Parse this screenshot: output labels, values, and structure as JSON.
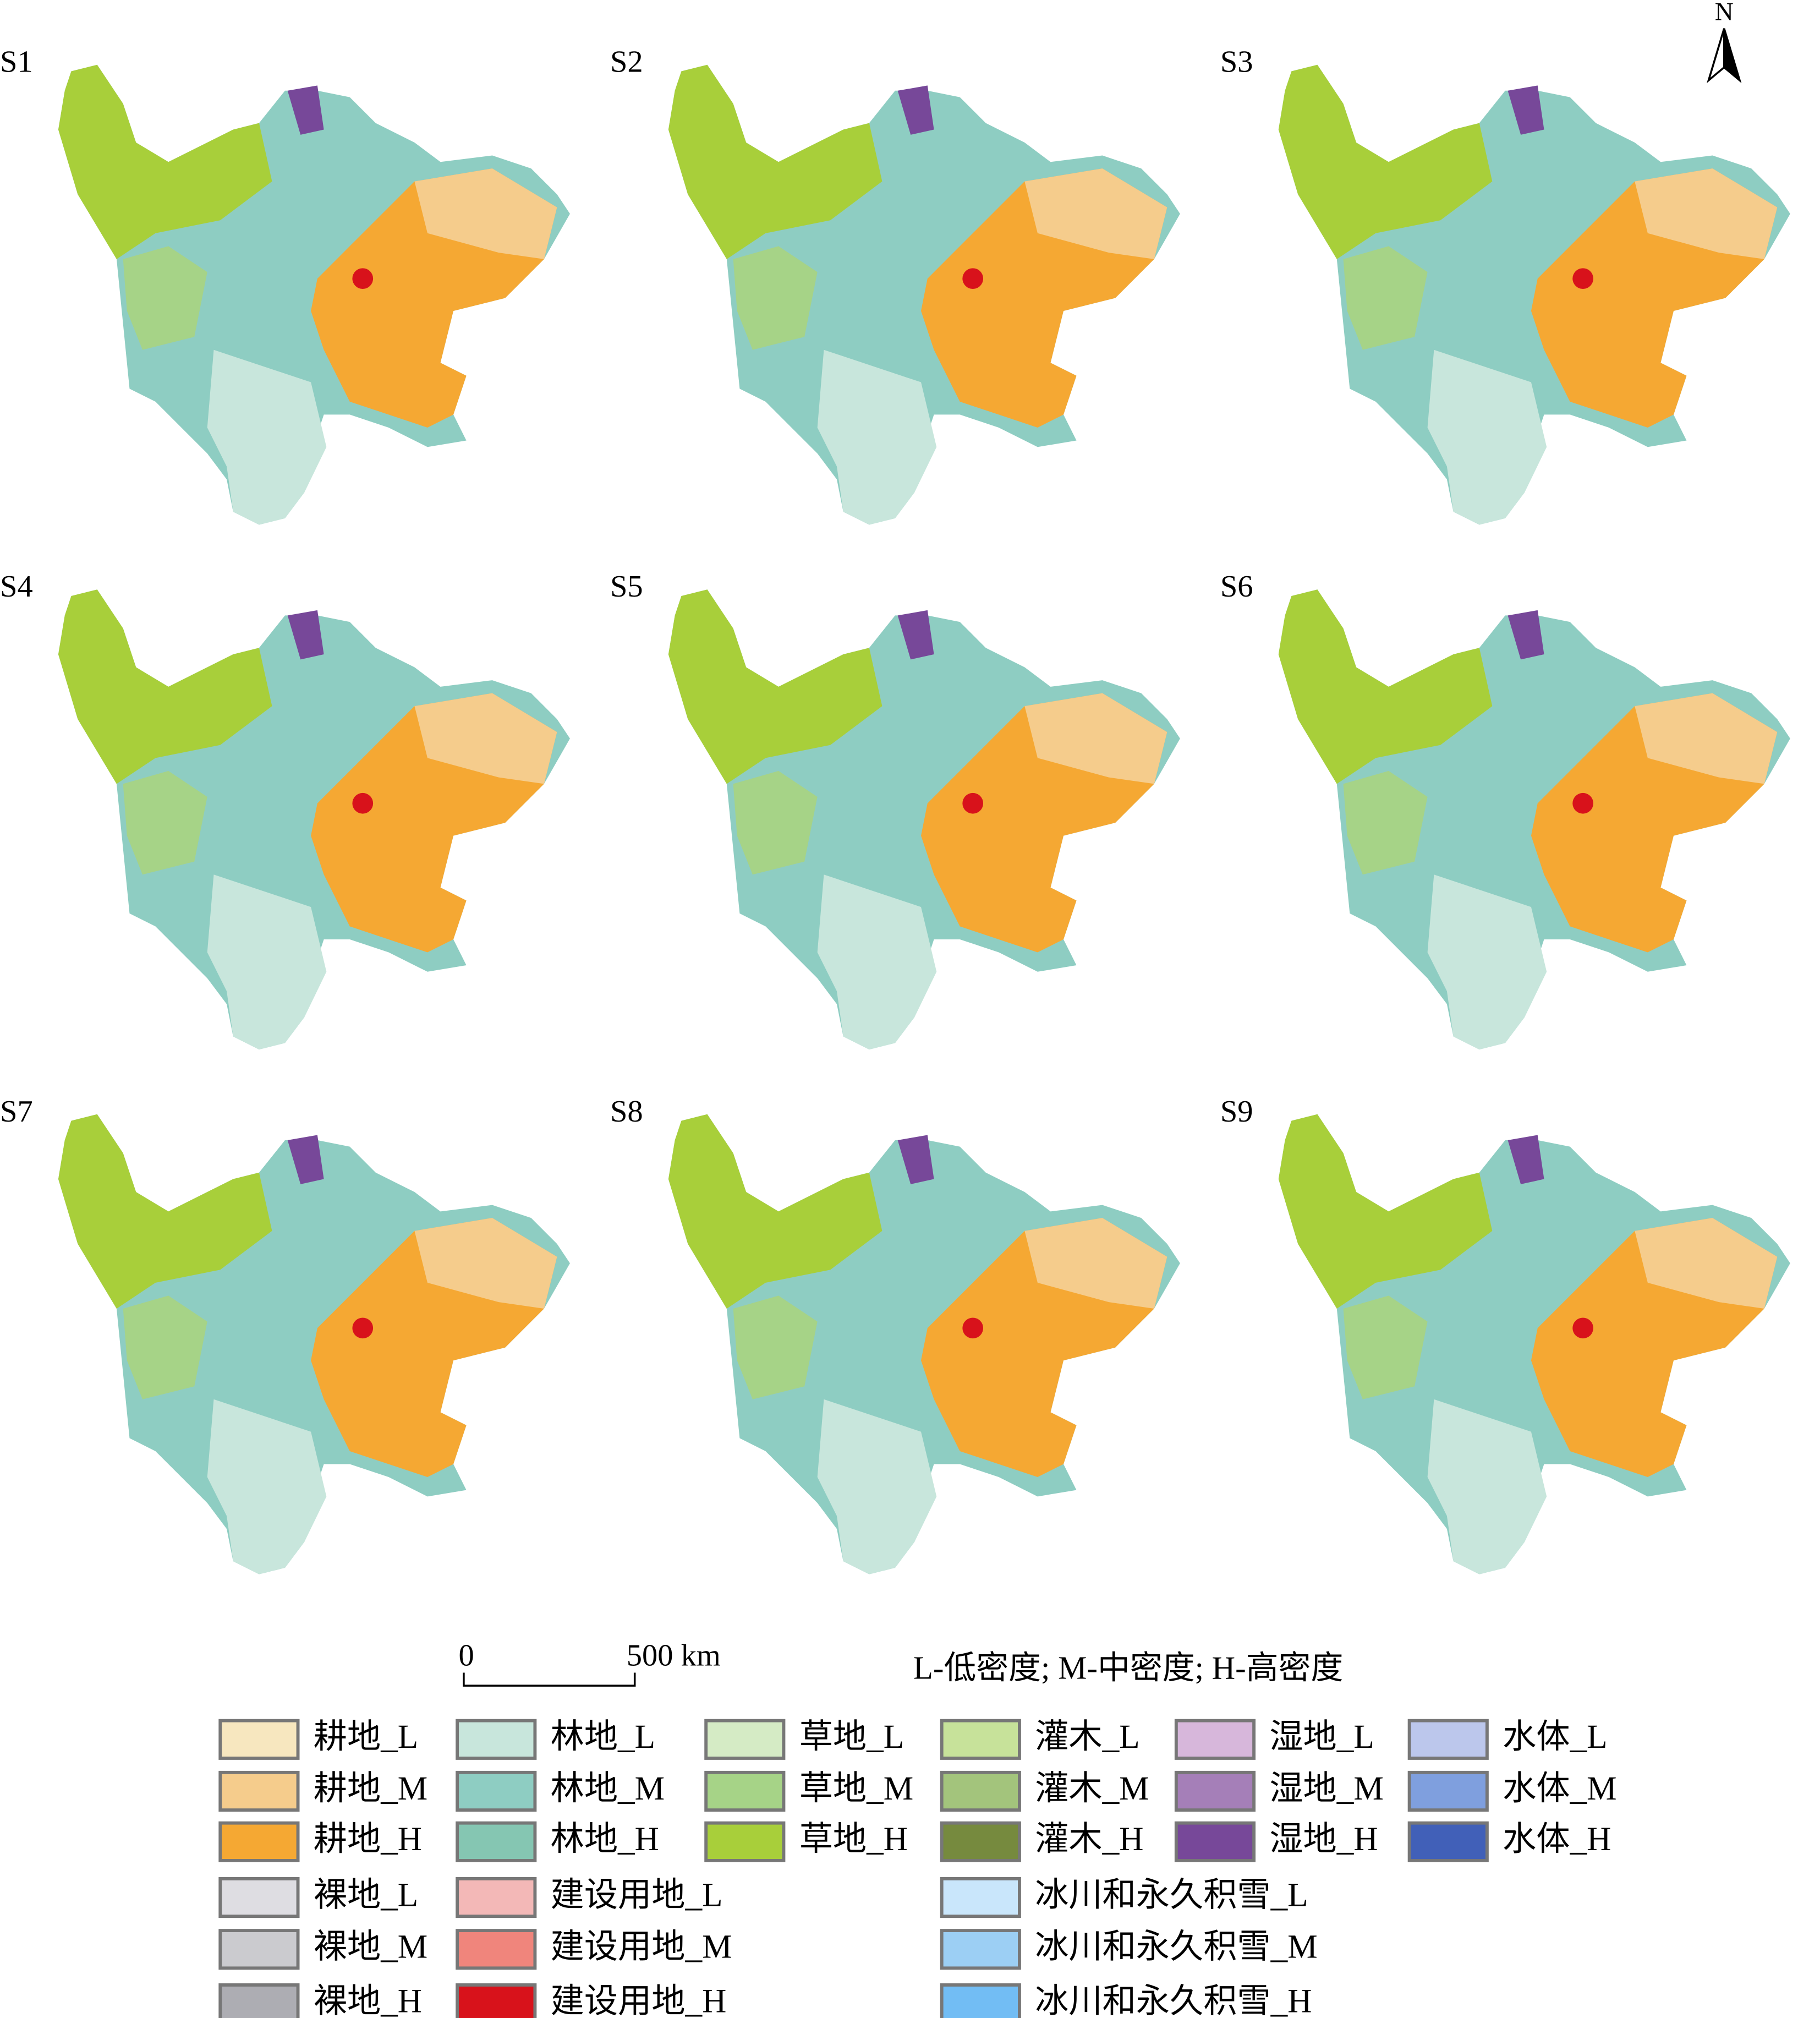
{
  "north": "N",
  "panels": [
    "S1",
    "S2",
    "S3",
    "S4",
    "S5",
    "S6",
    "S7",
    "S8",
    "S9"
  ],
  "scale_bar": {
    "start": "0",
    "end": "500 km"
  },
  "note": "L-低密度; M-中密度; H-高密度",
  "legend": [
    {
      "label": "耕地_L",
      "color": "#f7e7bf"
    },
    {
      "label": "耕地_M",
      "color": "#f5cc8c"
    },
    {
      "label": "耕地_H",
      "color": "#f5a833"
    },
    {
      "label": "林地_L",
      "color": "#c8e6dc"
    },
    {
      "label": "林地_M",
      "color": "#8ecdc2"
    },
    {
      "label": "林地_H",
      "color": "#85c6b2"
    },
    {
      "label": "草地_L",
      "color": "#d5ebc5"
    },
    {
      "label": "草地_M",
      "color": "#a6d387"
    },
    {
      "label": "草地_H",
      "color": "#a8cf3a"
    },
    {
      "label": "灌木_L",
      "color": "#c7e29a"
    },
    {
      "label": "灌木_M",
      "color": "#a3c47c"
    },
    {
      "label": "灌木_H",
      "color": "#768a3e"
    },
    {
      "label": "湿地_L",
      "color": "#d7b7db"
    },
    {
      "label": "湿地_M",
      "color": "#a57fb8"
    },
    {
      "label": "湿地_H",
      "color": "#774899"
    },
    {
      "label": "水体_L",
      "color": "#bcc7ec"
    },
    {
      "label": "水体_M",
      "color": "#7f9fde"
    },
    {
      "label": "水体_H",
      "color": "#4160b8"
    },
    {
      "label": "裸地_L",
      "color": "#dedde2"
    },
    {
      "label": "裸地_M",
      "color": "#cbcbcf"
    },
    {
      "label": "裸地_H",
      "color": "#adadb3"
    },
    {
      "label": "建设用地_L",
      "color": "#f3b8b7"
    },
    {
      "label": "建设用地_M",
      "color": "#f0857c"
    },
    {
      "label": "建设用地_H",
      "color": "#d8121b"
    },
    {
      "label": "冰川和永久积雪_L",
      "color": "#c9e6fb"
    },
    {
      "label": "冰川和永久积雪_M",
      "color": "#9ccff4"
    },
    {
      "label": "冰川和永久积雪_H",
      "color": "#72bdf4"
    }
  ]
}
